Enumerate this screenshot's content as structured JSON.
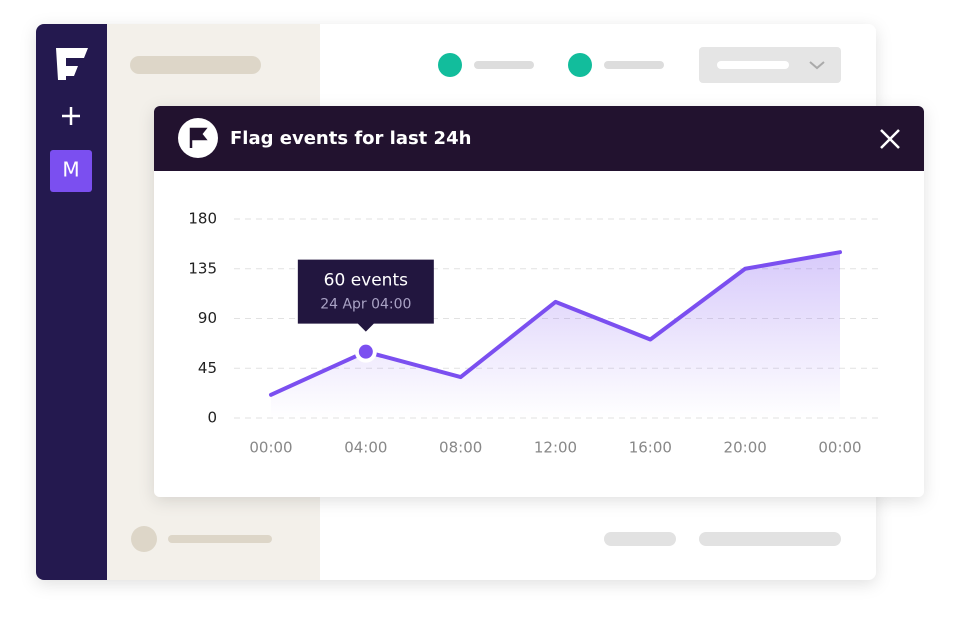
{
  "sidebar": {
    "avatar": "M"
  },
  "modal": {
    "title": "Flag events for last 24h"
  },
  "chart_data": {
    "type": "line",
    "categories": [
      "00:00",
      "04:00",
      "08:00",
      "12:00",
      "16:00",
      "20:00",
      "00:00"
    ],
    "values": [
      21,
      60,
      37,
      105,
      71,
      135,
      150
    ],
    "color": "#7b4ff0",
    "ylim": [
      0,
      180
    ],
    "yticks": [
      0,
      45,
      90,
      135,
      180
    ],
    "grid": true,
    "tooltip": {
      "title": "60 events",
      "subtitle": "24 Apr 04:00"
    }
  }
}
